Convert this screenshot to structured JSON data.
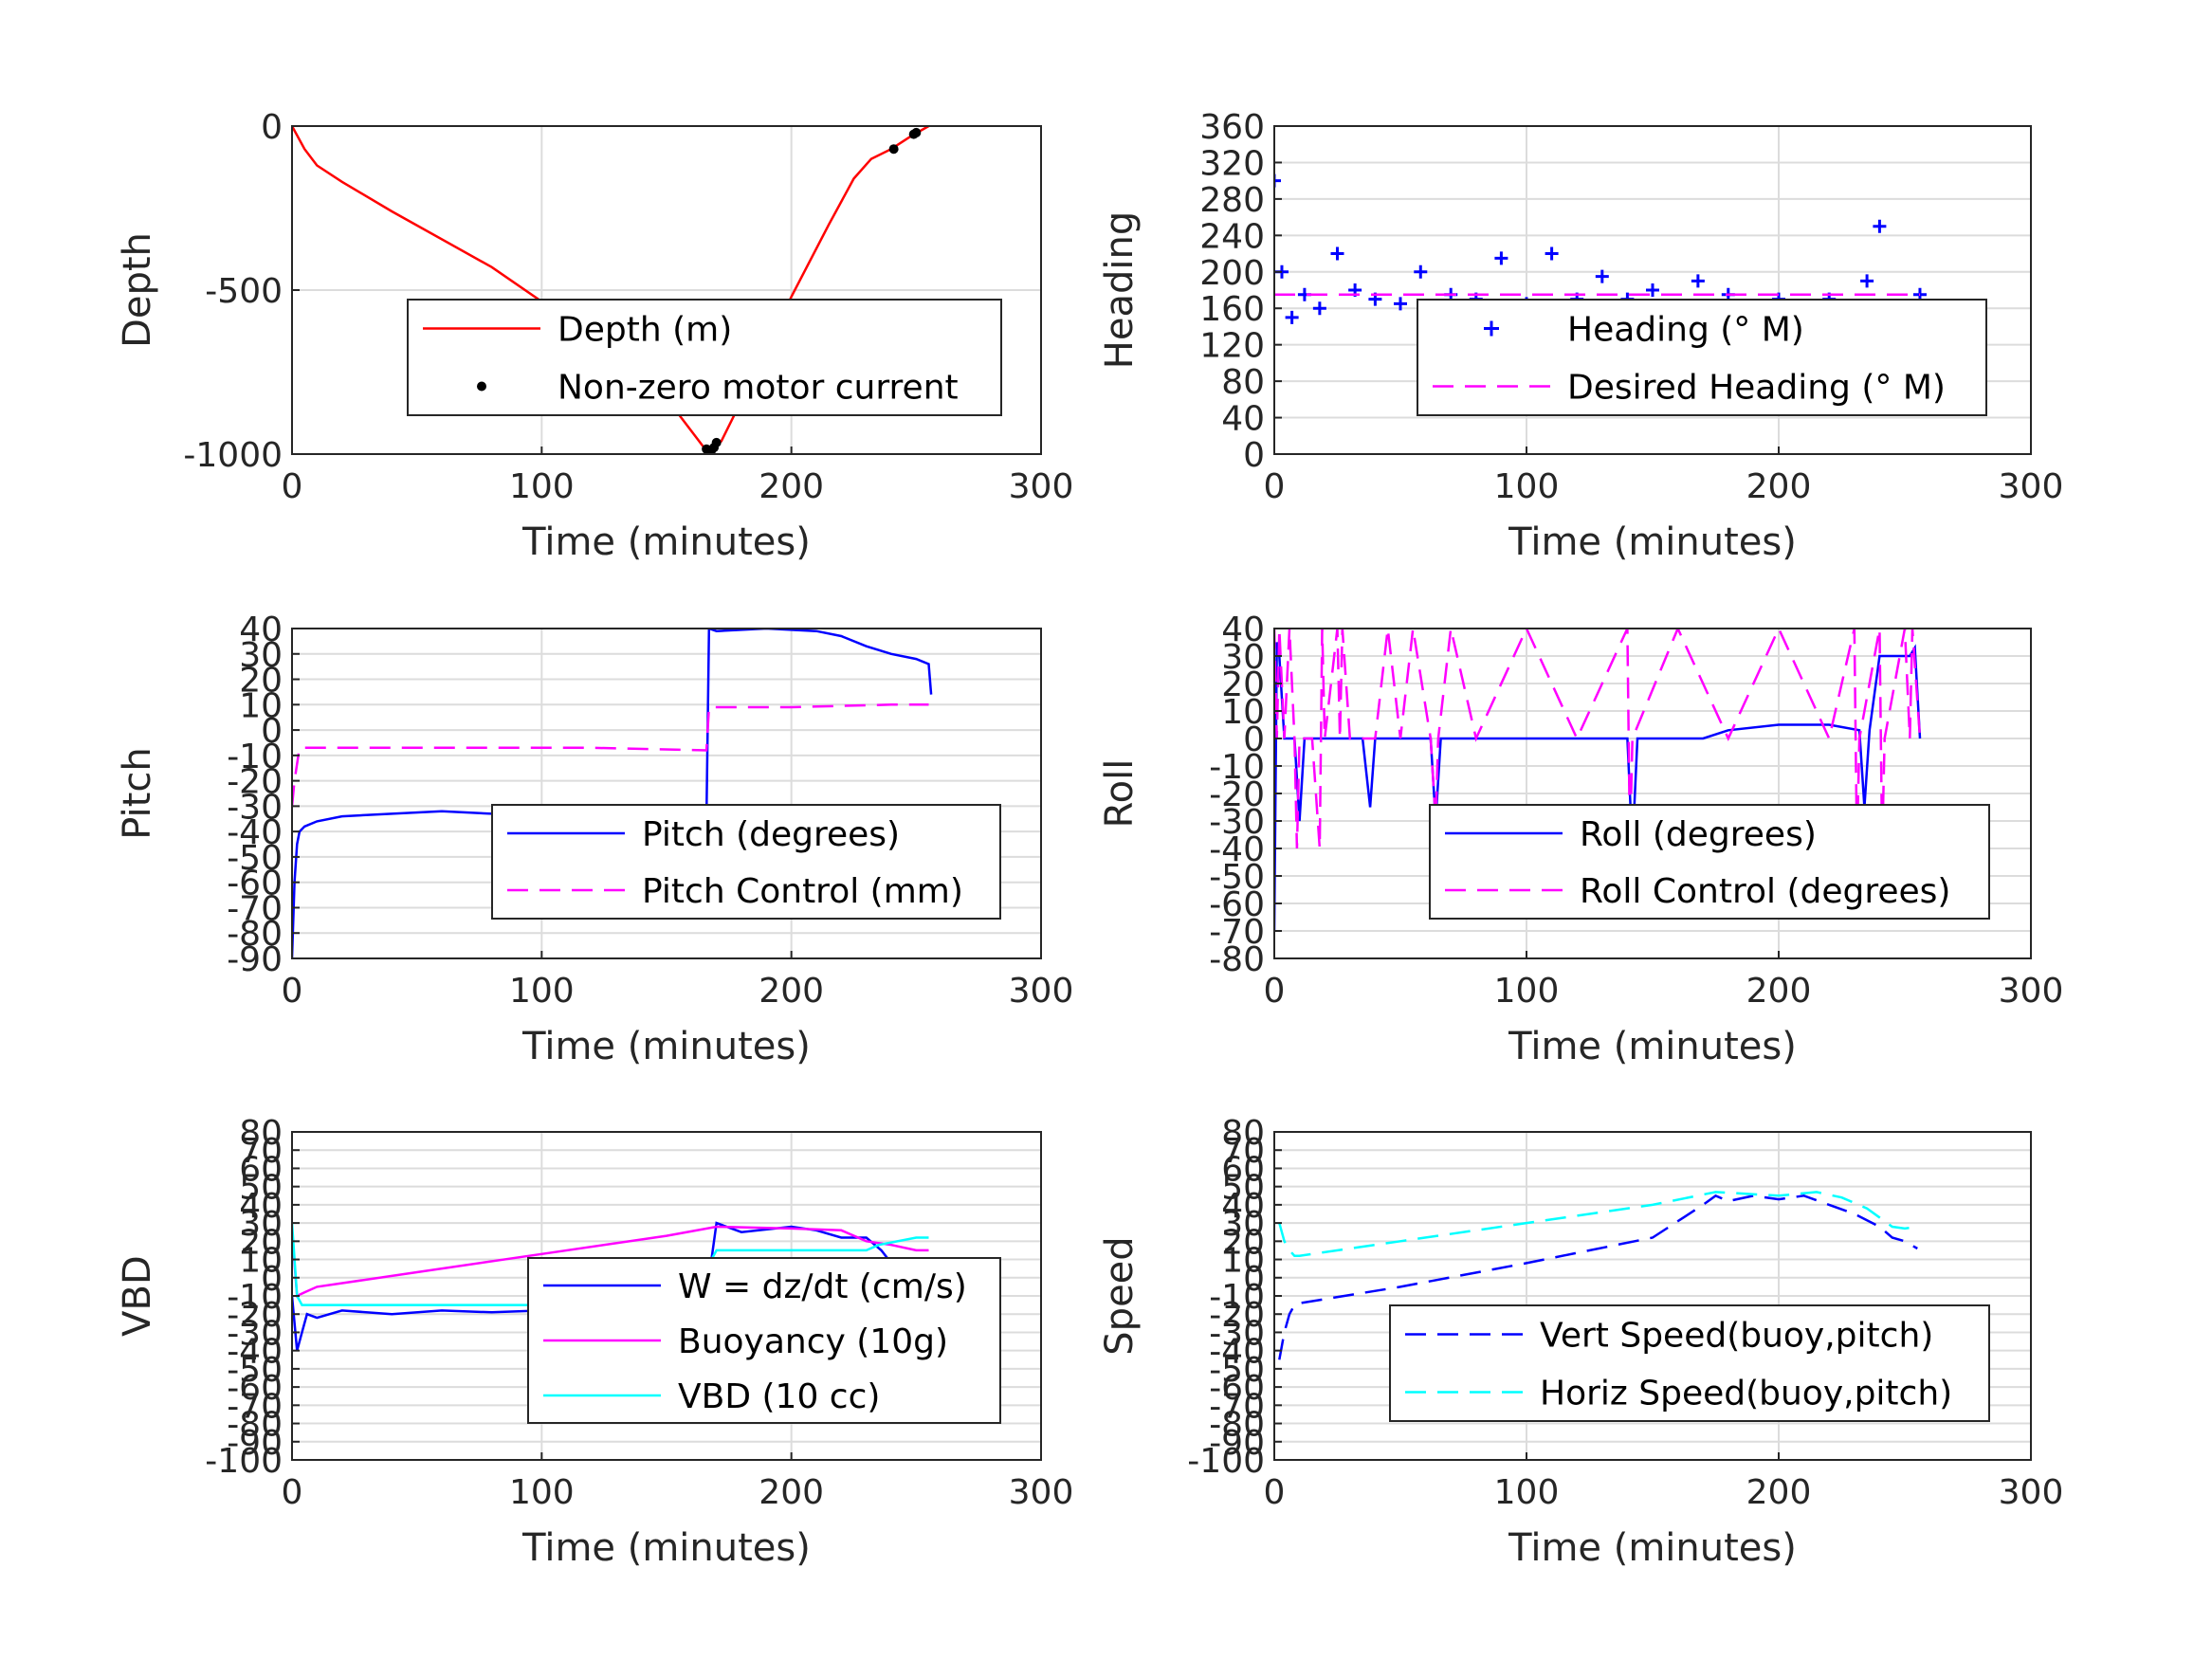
{
  "chart_data": [
    {
      "type": "line",
      "xlabel": "Time (minutes)",
      "ylabel": "Depth",
      "xlim": [
        0,
        300
      ],
      "ylim": [
        -1000,
        0
      ],
      "xticks": [
        "0",
        "100",
        "200",
        "300"
      ],
      "yticks": [
        "-1000",
        "-500",
        "0"
      ],
      "grid": true,
      "legend_position": "center-right",
      "series": [
        {
          "name": "Depth (m)",
          "style": "line",
          "color": "#ff0000",
          "x": [
            0,
            5,
            10,
            20,
            40,
            80,
            120,
            150,
            165,
            168,
            172,
            185,
            200,
            215,
            225,
            232,
            240,
            248,
            255
          ],
          "y": [
            0,
            -70,
            -120,
            -170,
            -260,
            -430,
            -640,
            -830,
            -980,
            -990,
            -960,
            -760,
            -520,
            -300,
            -160,
            -100,
            -70,
            -30,
            0
          ]
        },
        {
          "name": "Non-zero motor current",
          "style": "dot",
          "color": "#000000",
          "x": [
            166,
            167,
            168,
            169,
            170,
            241,
            249,
            250
          ],
          "y": [
            -985,
            -990,
            -988,
            -980,
            -965,
            -70,
            -25,
            -20
          ]
        }
      ]
    },
    {
      "type": "scatter",
      "xlabel": "Time (minutes)",
      "ylabel": "Heading",
      "xlim": [
        0,
        300
      ],
      "ylim": [
        0,
        360
      ],
      "xticks": [
        "0",
        "100",
        "200",
        "300"
      ],
      "yticks": [
        "0",
        "40",
        "80",
        "120",
        "160",
        "200",
        "240",
        "280",
        "320",
        "360"
      ],
      "grid": true,
      "legend_position": "lower-right",
      "series": [
        {
          "name": "Heading (° M)",
          "style": "plus",
          "color": "#0000ff",
          "x": [
            0,
            3,
            7,
            12,
            18,
            25,
            32,
            40,
            50,
            58,
            64,
            70,
            80,
            90,
            100,
            110,
            120,
            130,
            140,
            150,
            160,
            168,
            180,
            200,
            220,
            235,
            240,
            245,
            250,
            256
          ],
          "y": [
            300,
            200,
            150,
            175,
            160,
            220,
            180,
            170,
            165,
            200,
            130,
            175,
            170,
            215,
            165,
            220,
            170,
            195,
            170,
            180,
            160,
            190,
            175,
            170,
            170,
            190,
            250,
            100,
            150,
            175
          ]
        },
        {
          "name": "Desired Heading (° M)",
          "style": "dash",
          "color": "#ff00ff",
          "x": [
            0,
            256
          ],
          "y": [
            175,
            175
          ]
        }
      ]
    },
    {
      "type": "line",
      "xlabel": "Time (minutes)",
      "ylabel": "Pitch",
      "xlim": [
        0,
        300
      ],
      "ylim": [
        -90,
        40
      ],
      "xticks": [
        "0",
        "100",
        "200",
        "300"
      ],
      "yticks": [
        "-90",
        "-80",
        "-70",
        "-60",
        "-50",
        "-40",
        "-30",
        "-20",
        "-10",
        "0",
        "10",
        "20",
        "30",
        "40"
      ],
      "grid": true,
      "legend_position": "lower-right",
      "series": [
        {
          "name": "Pitch (degrees)",
          "style": "line",
          "color": "#0000ff",
          "x": [
            0,
            1,
            2,
            3,
            5,
            10,
            20,
            40,
            60,
            80,
            100,
            120,
            140,
            160,
            166,
            167,
            170,
            190,
            210,
            220,
            230,
            240,
            250,
            255,
            256
          ],
          "y": [
            -90,
            -60,
            -45,
            -40,
            -38,
            -36,
            -34,
            -33,
            -32,
            -33,
            -32,
            -32,
            -33,
            -33,
            -35,
            40,
            39,
            40,
            39,
            37,
            33,
            30,
            28,
            26,
            14
          ]
        },
        {
          "name": "Pitch Control (mm)",
          "style": "dash",
          "color": "#ff00ff",
          "x": [
            0,
            1,
            3,
            10,
            60,
            120,
            166,
            167,
            169,
            200,
            240,
            255
          ],
          "y": [
            -30,
            -20,
            -7,
            -7,
            -7,
            -7,
            -8,
            9,
            9,
            9,
            10,
            10
          ]
        }
      ]
    },
    {
      "type": "line",
      "xlabel": "Time (minutes)",
      "ylabel": "Roll",
      "xlim": [
        0,
        300
      ],
      "ylim": [
        -80,
        40
      ],
      "xticks": [
        "0",
        "100",
        "200",
        "300"
      ],
      "yticks": [
        "-80",
        "-70",
        "-60",
        "-50",
        "-40",
        "-30",
        "-20",
        "-10",
        "0",
        "10",
        "20",
        "30",
        "40"
      ],
      "grid": true,
      "legend_position": "lower-right",
      "series": [
        {
          "name": "Roll (degrees)",
          "style": "line",
          "color": "#0000ff",
          "x": [
            0,
            1,
            2,
            4,
            8,
            10,
            12,
            20,
            35,
            38,
            40,
            50,
            62,
            64,
            66,
            80,
            100,
            140,
            142,
            144,
            160,
            170,
            180,
            200,
            220,
            232,
            234,
            236,
            240,
            245,
            252,
            254,
            256
          ],
          "y": [
            -70,
            35,
            30,
            0,
            0,
            -30,
            0,
            0,
            0,
            -25,
            0,
            0,
            0,
            -30,
            0,
            0,
            0,
            0,
            -40,
            0,
            0,
            0,
            3,
            5,
            5,
            3,
            -25,
            3,
            30,
            30,
            30,
            33,
            0
          ]
        },
        {
          "name": "Roll Control (degrees)",
          "style": "dash",
          "color": "#ff00ff",
          "x": [
            0,
            1,
            2,
            4,
            6,
            8,
            9,
            10,
            15,
            18,
            19,
            20,
            25,
            26,
            27,
            30,
            40,
            45,
            50,
            55,
            62,
            64,
            65,
            70,
            80,
            100,
            120,
            140,
            141,
            142,
            160,
            180,
            200,
            220,
            230,
            231,
            232,
            240,
            241,
            242,
            250,
            252,
            253,
            256
          ],
          "y": [
            40,
            0,
            40,
            0,
            40,
            0,
            -40,
            0,
            0,
            -40,
            40,
            0,
            40,
            0,
            40,
            0,
            0,
            40,
            0,
            40,
            0,
            -30,
            0,
            40,
            0,
            40,
            0,
            40,
            -40,
            0,
            40,
            0,
            40,
            0,
            40,
            -40,
            0,
            40,
            -40,
            0,
            40,
            0,
            40,
            0
          ]
        }
      ]
    },
    {
      "type": "line",
      "xlabel": "Time (minutes)",
      "ylabel": "VBD",
      "xlim": [
        0,
        300
      ],
      "ylim": [
        -100,
        80
      ],
      "xticks": [
        "0",
        "100",
        "200",
        "300"
      ],
      "yticks": [
        "-100",
        "-90",
        "-80",
        "-70",
        "-60",
        "-50",
        "-40",
        "-30",
        "-20",
        "-10",
        "0",
        "10",
        "20",
        "30",
        "40",
        "50",
        "60",
        "70",
        "80"
      ],
      "grid": true,
      "legend_position": "lower-right",
      "series": [
        {
          "name": "W = dz/dt (cm/s)",
          "style": "line",
          "color": "#0000ff",
          "x": [
            0,
            2,
            4,
            6,
            10,
            20,
            40,
            60,
            80,
            100,
            120,
            140,
            160,
            166,
            168,
            170,
            180,
            200,
            210,
            220,
            230,
            236,
            240,
            245,
            250,
            255
          ],
          "y": [
            -10,
            -40,
            -30,
            -20,
            -22,
            -18,
            -20,
            -18,
            -19,
            -18,
            -18,
            -16,
            -14,
            -10,
            10,
            30,
            25,
            28,
            26,
            22,
            22,
            15,
            8,
            2,
            5,
            10
          ]
        },
        {
          "name": "Buoyancy (10g)",
          "style": "line",
          "color": "#ff00ff",
          "x": [
            0,
            2,
            5,
            10,
            50,
            100,
            150,
            170,
            200,
            220,
            230,
            240,
            250,
            255
          ],
          "y": [
            25,
            -10,
            -8,
            -5,
            3,
            13,
            23,
            28,
            27,
            26,
            20,
            18,
            15,
            15
          ]
        },
        {
          "name": "VBD (10 cc)",
          "style": "line",
          "color": "#00ffff",
          "x": [
            0,
            2,
            4,
            6,
            100,
            150,
            166,
            168,
            170,
            230,
            235,
            250,
            255
          ],
          "y": [
            30,
            -10,
            -15,
            -15,
            -15,
            -15,
            -15,
            10,
            15,
            15,
            18,
            22,
            22
          ]
        }
      ]
    },
    {
      "type": "line",
      "xlabel": "Time (minutes)",
      "ylabel": "Speed",
      "xlim": [
        0,
        300
      ],
      "ylim": [
        -100,
        80
      ],
      "xticks": [
        "0",
        "100",
        "200",
        "300"
      ],
      "yticks": [
        "-100",
        "-90",
        "-80",
        "-70",
        "-60",
        "-50",
        "-40",
        "-30",
        "-20",
        "-10",
        "0",
        "10",
        "20",
        "30",
        "40",
        "50",
        "60",
        "70",
        "80"
      ],
      "grid": true,
      "legend_position": "lower-right",
      "series": [
        {
          "name": "Vert Speed(buoy,pitch)",
          "style": "dash",
          "color": "#0000ff",
          "x": [
            2,
            4,
            6,
            8,
            10,
            50,
            100,
            150,
            170,
            175,
            180,
            190,
            200,
            210,
            220,
            230,
            240,
            245,
            250,
            255
          ],
          "y": [
            -45,
            -30,
            -20,
            -15,
            -14,
            -5,
            8,
            22,
            40,
            45,
            42,
            45,
            43,
            45,
            40,
            35,
            28,
            22,
            20,
            16
          ]
        },
        {
          "name": "Horiz Speed(buoy,pitch)",
          "style": "dash",
          "color": "#00ffff",
          "x": [
            2,
            4,
            6,
            8,
            10,
            50,
            100,
            150,
            175,
            200,
            215,
            225,
            235,
            240,
            245,
            250,
            255
          ],
          "y": [
            30,
            20,
            15,
            12,
            12,
            20,
            30,
            40,
            47,
            45,
            47,
            44,
            38,
            33,
            28,
            27,
            28
          ]
        }
      ]
    }
  ]
}
